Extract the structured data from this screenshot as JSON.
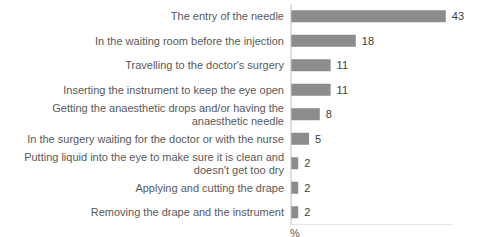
{
  "chart_data": {
    "type": "bar",
    "orientation": "horizontal",
    "categories": [
      "The entry of the needle",
      "In the waiting room before the injection",
      "Travelling to the doctor's surgery",
      "Inserting the instrument to keep the eye open",
      "Getting the anaesthetic drops and/or having the anaesthetic needle",
      "In the surgery waiting for the doctor or with the nurse",
      "Putting liquid into the eye to make sure it is clean and doesn't get too dry",
      "Applying and cutting the drape",
      "Removing the drape and the instrument"
    ],
    "values": [
      43,
      18,
      11,
      11,
      8,
      5,
      2,
      2,
      2
    ],
    "color": "#8c8c8c",
    "x_label": "%",
    "xlim": [
      0,
      45
    ],
    "data_labels": true,
    "tick_labels": false,
    "grid": false
  }
}
